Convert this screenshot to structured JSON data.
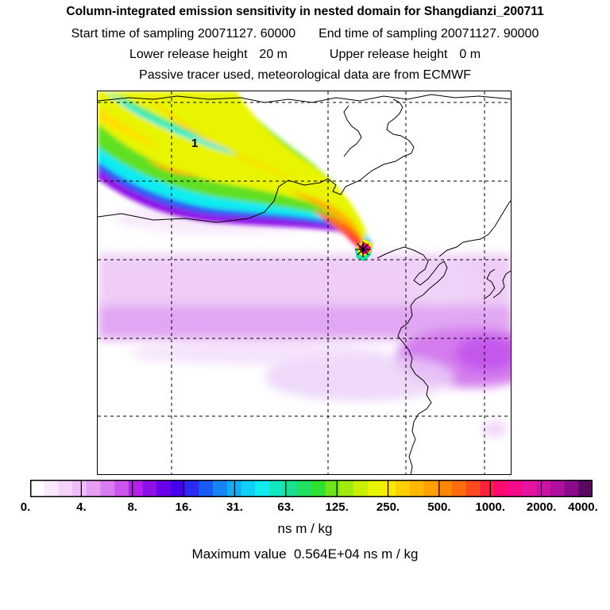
{
  "title": "Column-integrated emission sensitivity in nested domain for Shangdianzi_200711",
  "start_label": "Start time of sampling",
  "start_value": "20071127. 60000",
  "end_label": "End time of sampling",
  "end_value": "20071127. 90000",
  "lower_label": "Lower release height",
  "lower_value": "20 m",
  "upper_label": "Upper release height",
  "upper_value": "0 m",
  "note": "Passive tracer used, meteorological data are from ECMWF",
  "map": {
    "contour_label": "1",
    "release_marker": "receptor-star-icon"
  },
  "colorbar": {
    "colors": [
      "#ffffff",
      "#fbe9fd",
      "#f6d3fb",
      "#efbdf7",
      "#e59ef4",
      "#d97cf0",
      "#cc55ee",
      "#b520ea",
      "#8e10e8",
      "#6a00ea",
      "#4700ee",
      "#2a2af2",
      "#1a5af4",
      "#1584f5",
      "#11acf6",
      "#10d0f5",
      "#10ecf0",
      "#14e6c0",
      "#18e090",
      "#20e060",
      "#2ee030",
      "#70e418",
      "#a0ea10",
      "#c8f000",
      "#e8f400",
      "#ffe800",
      "#ffd000",
      "#ffb800",
      "#ffa000",
      "#ff8800",
      "#ff6c10",
      "#ff4a20",
      "#ff2040",
      "#ff0a70",
      "#f50a8c",
      "#e414a0",
      "#cc12a4",
      "#b00e9c",
      "#8c0a8c",
      "#5c0860"
    ],
    "tick_labels": [
      "0.",
      "4.",
      "8.",
      "16.",
      "31.",
      "63.",
      "125.",
      "250.",
      "500.",
      "1000.",
      "2000.",
      "4000."
    ]
  },
  "unit": "ns m / kg",
  "max_label": "Maximum value",
  "max_value": "0.564E+04 ns m / kg"
}
